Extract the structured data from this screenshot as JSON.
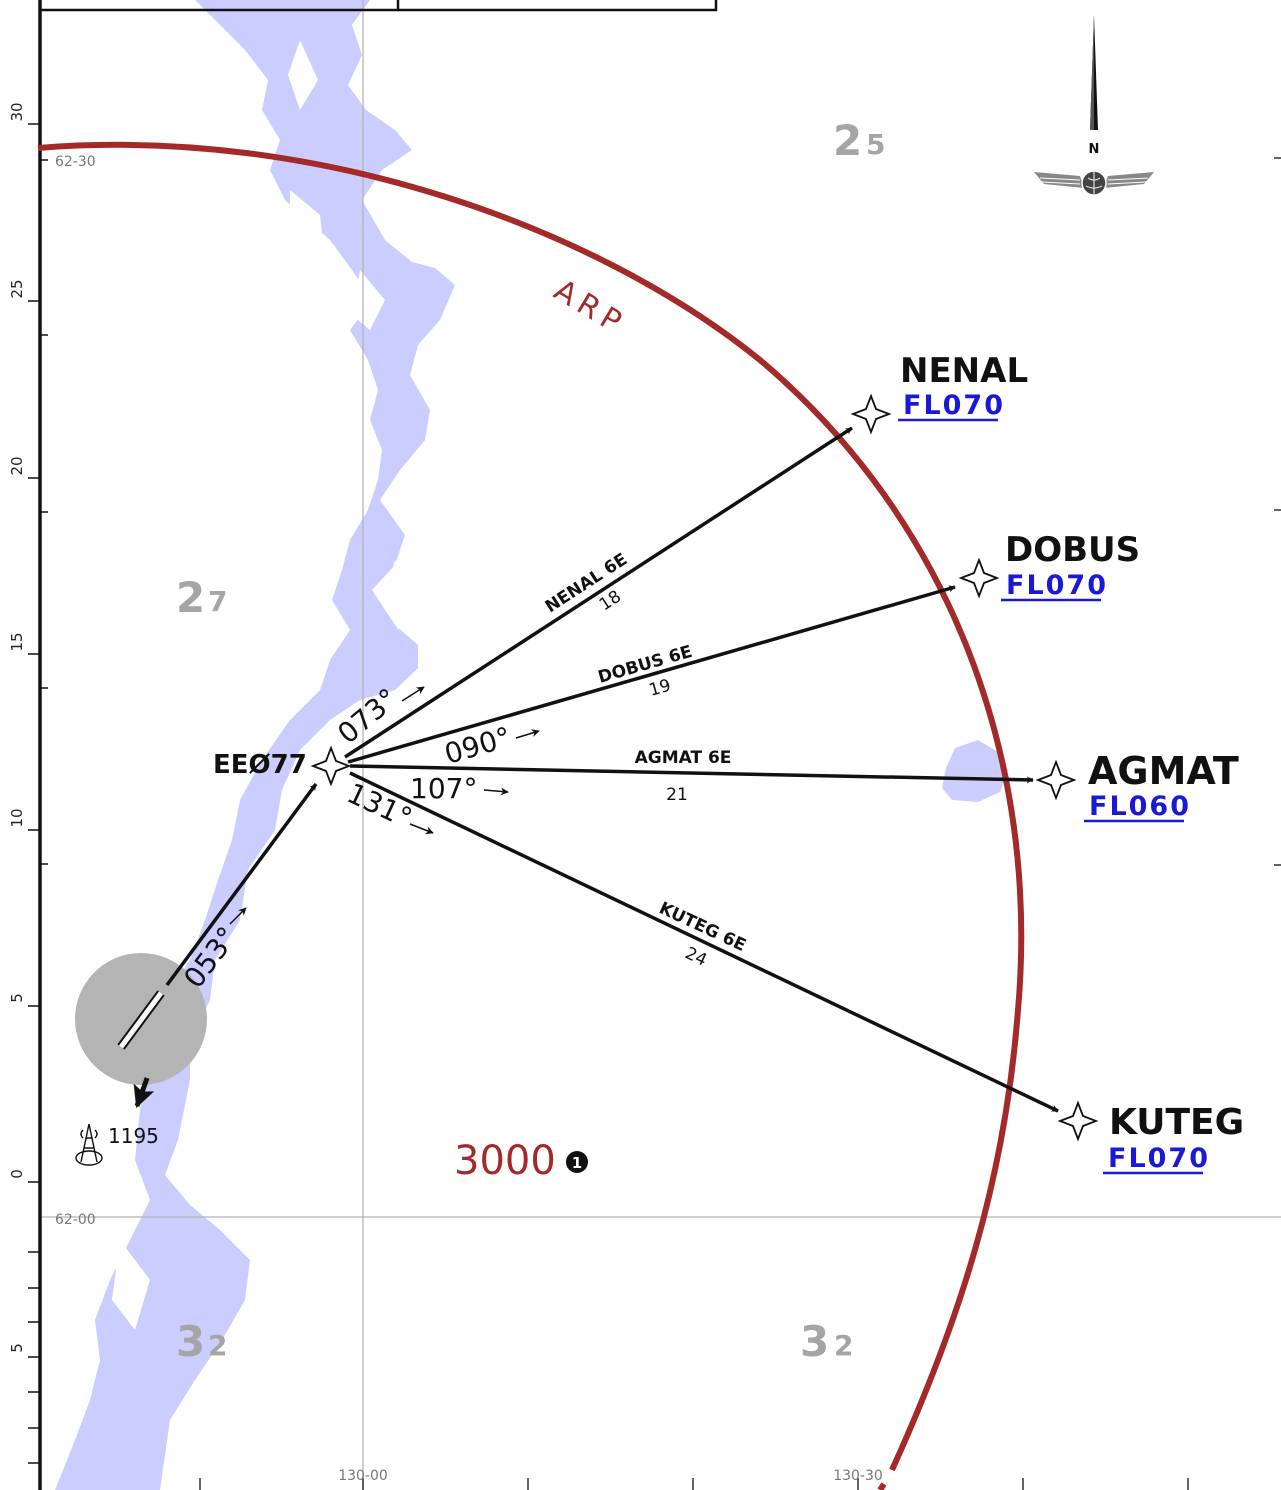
{
  "colors": {
    "water": "#cbcdff",
    "arc": "#a42a2a",
    "route": "#111111",
    "flight_level": "#1a1ad6",
    "msa": "#a5a5a5",
    "grid": "#b5b5b5",
    "airport_circle": "#b4b4b4"
  },
  "icons": {
    "waypoint": "four-point-star-icon",
    "north": "north-arrow-icon",
    "logo": "winged-globe-icon",
    "obstacle": "antenna-obstacle-icon",
    "note": "info-circle-icon"
  },
  "scale_labels": [
    "30",
    "25",
    "20",
    "15",
    "10",
    "5",
    "0",
    "5"
  ],
  "grid_labels": {
    "lat_top": "62-30",
    "lat_bottom": "62-00",
    "lon_left": "130-00",
    "lon_right": "130-30"
  },
  "north_label": "N",
  "arc_label": "ARP",
  "msa_sectors": [
    {
      "big": "2",
      "small": "5"
    },
    {
      "big": "2",
      "small": "7"
    },
    {
      "big": "3",
      "small": "2"
    },
    {
      "big": "3",
      "small": "2"
    }
  ],
  "min_altitude": "3000",
  "note_marker": "1",
  "obstacle": {
    "elevation": "1195"
  },
  "start_fix": {
    "name": "EEØ77"
  },
  "departure": {
    "course": "053°"
  },
  "waypoints": [
    {
      "name": "NENAL",
      "level": "FL070"
    },
    {
      "name": "DOBUS",
      "level": "FL070"
    },
    {
      "name": "AGMAT",
      "level": "FL060"
    },
    {
      "name": "KUTEG",
      "level": "FL070"
    }
  ],
  "routes": [
    {
      "name": "NENAL 6E",
      "distance": "18",
      "course": "073°"
    },
    {
      "name": "DOBUS 6E",
      "distance": "19",
      "course": "090°"
    },
    {
      "name": "AGMAT 6E",
      "distance": "21",
      "course": "107°"
    },
    {
      "name": "KUTEG 6E",
      "distance": "24",
      "course": "131°"
    }
  ]
}
